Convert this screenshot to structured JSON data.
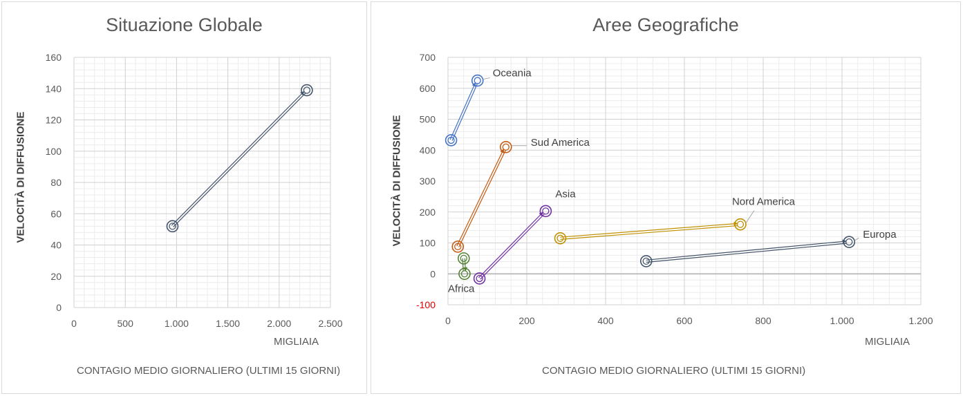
{
  "chart_data": [
    {
      "type": "scatter",
      "title": "Situazione Globale",
      "xlabel": "CONTAGIO MEDIO GIORNALIERO (ULTIMI 15 GIORNI)",
      "x_unit_label": "MIGLIAIA",
      "ylabel": "VELOCITÀ DI DIFFUSIONE",
      "xlim": [
        0,
        2500
      ],
      "ylim": [
        0,
        160
      ],
      "x_ticks": [
        "0",
        "500",
        "1.000",
        "1.500",
        "2.000",
        "2.500"
      ],
      "y_ticks": [
        "0",
        "20",
        "40",
        "60",
        "80",
        "100",
        "120",
        "140",
        "160"
      ],
      "grid": true,
      "series": [
        {
          "color": "#44546a",
          "points": [
            {
              "x": 960,
              "y": 52
            },
            {
              "x": 2270,
              "y": 139
            }
          ]
        }
      ]
    },
    {
      "type": "scatter",
      "title": "Aree Geografiche",
      "xlabel": "CONTAGIO MEDIO GIORNALIERO (ULTIMI 15 GIORNI)",
      "x_unit_label": "MIGLIAIA",
      "ylabel": "VELOCITÀ DI DIFFUSIONE",
      "xlim": [
        0,
        1200
      ],
      "ylim": [
        -100,
        700
      ],
      "x_ticks": [
        "0",
        "200",
        "400",
        "600",
        "800",
        "1.000",
        "1.200"
      ],
      "y_ticks": [
        "-100",
        "0",
        "100",
        "200",
        "300",
        "400",
        "500",
        "600",
        "700"
      ],
      "grid": true,
      "series": [
        {
          "name": "Oceania",
          "color": "#4472c4",
          "points": [
            {
              "x": 8,
              "y": 432
            },
            {
              "x": 75,
              "y": 625
            }
          ]
        },
        {
          "name": "Sud America",
          "color": "#c55a11",
          "points": [
            {
              "x": 25,
              "y": 88
            },
            {
              "x": 147,
              "y": 410
            }
          ]
        },
        {
          "name": "Asia",
          "color": "#7030a0",
          "points": [
            {
              "x": 80,
              "y": -15
            },
            {
              "x": 248,
              "y": 203
            }
          ]
        },
        {
          "name": "Africa",
          "color": "#548235",
          "points": [
            {
              "x": 40,
              "y": 50
            },
            {
              "x": 42,
              "y": 0
            }
          ]
        },
        {
          "name": "Nord America",
          "color": "#bf9000",
          "points": [
            {
              "x": 285,
              "y": 115
            },
            {
              "x": 742,
              "y": 160
            }
          ]
        },
        {
          "name": "Europa",
          "color": "#44546a",
          "points": [
            {
              "x": 503,
              "y": 41
            },
            {
              "x": 1018,
              "y": 103
            }
          ]
        }
      ]
    }
  ]
}
